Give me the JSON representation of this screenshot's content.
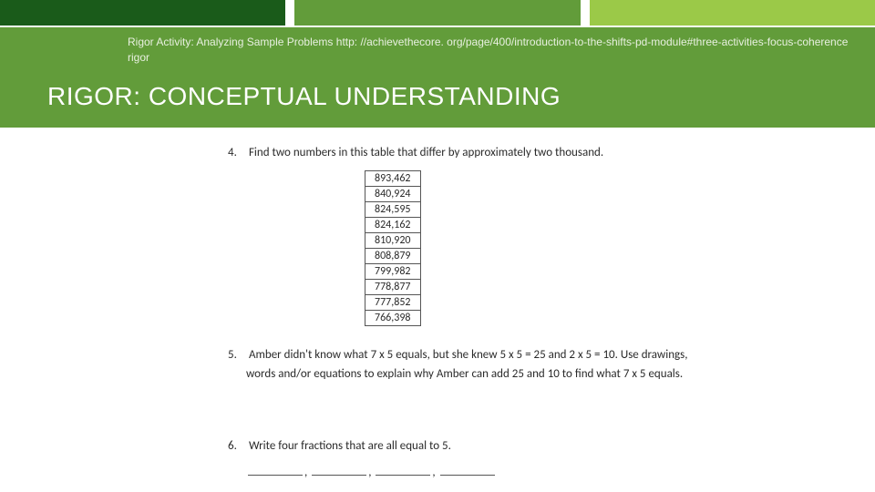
{
  "topStrip": {
    "colors": [
      "#1a5b1a",
      "#629c3a",
      "#9bc948"
    ]
  },
  "header": {
    "bg": "#629c3a",
    "activityPrefix": "Rigor Activity:  Analyzing Sample Problems ",
    "activityUrl": "http: //achievethecore. org/page/400/introduction-to-the-shifts-pd-module#three-activities-focus-coherence",
    "activityLine2": "rigor",
    "title": "RIGOR: CONCEPTUAL UNDERSTANDING"
  },
  "q4": {
    "num": "4.",
    "text": "Find two numbers in this table that differ by approximately two thousand.",
    "values": [
      "893,462",
      "840,924",
      "824,595",
      "824,162",
      "810,920",
      "808,879",
      "799,982",
      "778,877",
      "777,852",
      "766,398"
    ]
  },
  "q5": {
    "num": "5.",
    "line1": "Amber didn't know what 7 x 5 equals, but she knew 5 x 5 = 25 and 2 x 5 = 10. Use drawings,",
    "line2": "words and/or equations to explain why Amber can add 25 and 10 to find what 7 x 5 equals."
  },
  "q6": {
    "num": "6.",
    "text": "Write four fractions that are all equal to 5.",
    "sep": ","
  }
}
